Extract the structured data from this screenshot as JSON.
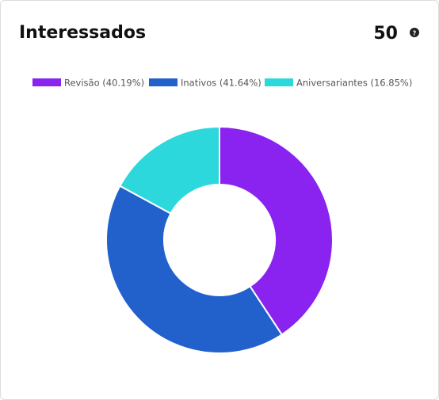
{
  "header": {
    "title": "Interessados",
    "total": "50",
    "help_icon": "?"
  },
  "chart_data": {
    "type": "donut",
    "categories": [
      "Revisão (40.19%)",
      "Inativos (41.64%)",
      "Aniversariantes (16.85%)"
    ],
    "values": [
      40.19,
      41.64,
      16.85
    ],
    "colors": [
      "#8a22f0",
      "#2260cc",
      "#2dd8dc"
    ]
  }
}
